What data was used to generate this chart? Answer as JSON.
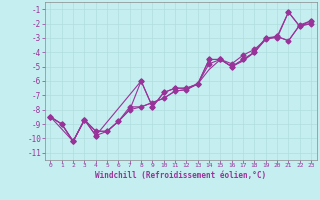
{
  "xlabel": "Windchill (Refroidissement éolien,°C)",
  "bg_color": "#c5eef0",
  "line_color": "#993399",
  "xlim": [
    -0.5,
    23.5
  ],
  "ylim": [
    -11.5,
    -0.5
  ],
  "xticks": [
    0,
    1,
    2,
    3,
    4,
    5,
    6,
    7,
    8,
    9,
    10,
    11,
    12,
    13,
    14,
    15,
    16,
    17,
    18,
    19,
    20,
    21,
    22,
    23
  ],
  "yticks": [
    -1,
    -2,
    -3,
    -4,
    -5,
    -6,
    -7,
    -8,
    -9,
    -10,
    -11
  ],
  "grid_color": "#b0dde0",
  "series_smooth_x": [
    0,
    1,
    2,
    3,
    4,
    5,
    6,
    7,
    8,
    9,
    10,
    11,
    12,
    13,
    14,
    15,
    16,
    17,
    18,
    19,
    20,
    21,
    22,
    23
  ],
  "series_smooth_y": [
    -8.5,
    -9.0,
    -10.2,
    -8.7,
    -9.5,
    -9.5,
    -8.8,
    -8.0,
    -7.8,
    -7.5,
    -7.2,
    -6.7,
    -6.6,
    -6.2,
    -5.2,
    -4.5,
    -5.0,
    -4.6,
    -4.0,
    -3.1,
    -2.9,
    -3.2,
    -2.1,
    -2.0
  ],
  "series_marked1_x": [
    0,
    1,
    2,
    3,
    4,
    5,
    6,
    7,
    8,
    9,
    10,
    11,
    12,
    13,
    14,
    15,
    16,
    17,
    18,
    19,
    20,
    21,
    22,
    23
  ],
  "series_marked1_y": [
    -8.5,
    -9.0,
    -10.2,
    -8.7,
    -9.5,
    -9.5,
    -8.8,
    -8.0,
    -6.0,
    -7.8,
    -6.8,
    -6.5,
    -6.5,
    -6.2,
    -4.5,
    -4.5,
    -5.0,
    -4.5,
    -4.0,
    -3.0,
    -3.0,
    -1.2,
    -2.2,
    -2.0
  ],
  "series_marked2_x": [
    0,
    1,
    2,
    3,
    4,
    5,
    6,
    7,
    8,
    9,
    10,
    11,
    12,
    13,
    14,
    15,
    16,
    17,
    18,
    19,
    20,
    21,
    22,
    23
  ],
  "series_marked2_y": [
    -8.5,
    -9.0,
    -10.2,
    -8.7,
    -9.8,
    -9.5,
    -8.8,
    -7.8,
    -7.8,
    -7.5,
    -7.2,
    -6.7,
    -6.6,
    -6.2,
    -4.8,
    -4.5,
    -4.8,
    -4.2,
    -3.8,
    -3.1,
    -2.9,
    -3.2,
    -2.1,
    -1.8
  ],
  "series_spiky_x": [
    0,
    2,
    3,
    4,
    8,
    9,
    10,
    11,
    12,
    13,
    14,
    15,
    16,
    17,
    18,
    19,
    20,
    21,
    22,
    23
  ],
  "series_spiky_y": [
    -8.5,
    -10.2,
    -8.7,
    -9.8,
    -6.0,
    -7.8,
    -6.8,
    -6.5,
    -6.5,
    -6.2,
    -4.5,
    -4.5,
    -5.0,
    -4.5,
    -4.0,
    -3.0,
    -2.9,
    -1.2,
    -2.2,
    -1.8
  ]
}
